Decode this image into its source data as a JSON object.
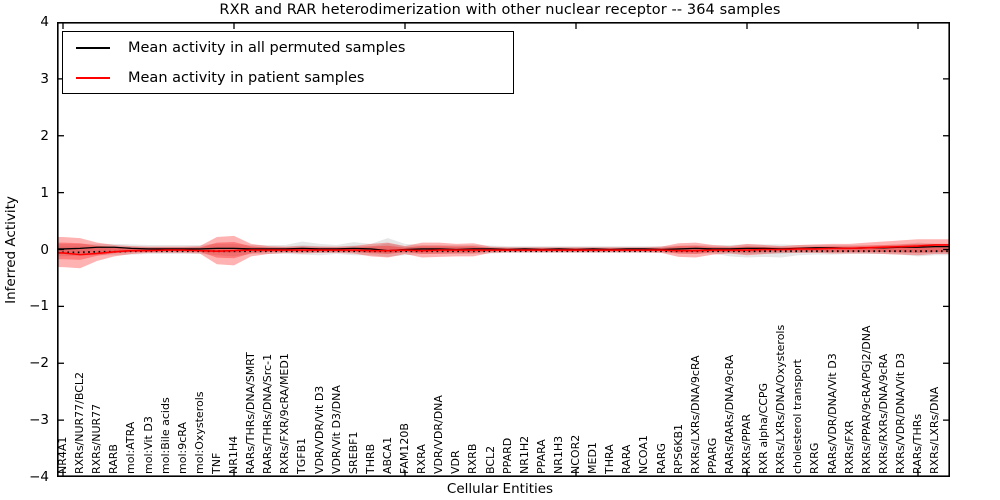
{
  "title": "RXR and RAR heterodimerization with other nuclear receptor -- 364 samples",
  "axes": {
    "xlabel": "Cellular Entities",
    "ylabel": "Inferred Activity",
    "ytick_labels": [
      "4",
      "3",
      "2",
      "1",
      "0",
      "−1",
      "−2",
      "−3",
      "−4"
    ],
    "ytick_values": [
      4,
      3,
      2,
      1,
      0,
      -1,
      -2,
      -3,
      -4
    ],
    "xtick_indices": [
      0,
      10,
      20,
      30,
      40,
      50
    ]
  },
  "legend": {
    "entries": [
      {
        "label": "Mean activity in all permuted samples",
        "color": "#000000"
      },
      {
        "label": "Mean activity in patient samples",
        "color": "#ff0000"
      }
    ],
    "position": "upper left"
  },
  "chart_data": {
    "type": "line",
    "title": "RXR and RAR heterodimerization with other nuclear receptor -- 364 samples",
    "xlabel": "Cellular Entities",
    "ylabel": "Inferred Activity",
    "ylim": [
      -4,
      4
    ],
    "grid": false,
    "legend_position": "upper left",
    "categories": [
      "NR4A1",
      "RXRs/NUR77/BCL2",
      "RXRs/NUR77",
      "RARB",
      "mol:ATRA",
      "mol:Vit D3",
      "mol:Bile acids",
      "mol:9cRA",
      "mol:Oxysterols",
      "TNF",
      "NR1H4",
      "RARs/THRs/DNA/SMRT",
      "RARs/THRs/DNA/Src-1",
      "RXRs/FXR/9cRA/MED1",
      "TGFB1",
      "VDR/VDR/Vit D3",
      "VDR/Vit D3/DNA",
      "SREBF1",
      "THRB",
      "ABCA1",
      "FAM120B",
      "RXRA",
      "VDR/VDR/DNA",
      "VDR",
      "RXRB",
      "BCL2",
      "PPARD",
      "NR1H2",
      "PPARA",
      "NR1H3",
      "NCOR2",
      "MED1",
      "THRA",
      "RARA",
      "NCOA1",
      "RARG",
      "RPS6KB1",
      "RXRs/LXRs/DNA/9cRA",
      "PPARG",
      "RARs/RARs/DNA/9cRA",
      "RXRs/PPAR",
      "RXR alpha/CCPG",
      "RXRs/LXRs/DNA/Oxysterols",
      "cholesterol transport",
      "RXRG",
      "RARs/VDR/DNA/Vit D3",
      "RXRs/FXR",
      "RXRs/PPAR/9cRA/PGJ2/DNA",
      "RXRs/RXRs/DNA/9cRA",
      "RXRs/VDR/DNA/Vit D3",
      "RARs/THRs",
      "RXRs/LXRs/DNA"
    ],
    "series": [
      {
        "name": "Mean activity in all permuted samples",
        "color": "#000000",
        "style": "solid",
        "width": 1.3,
        "values": [
          0.01,
          0.02,
          0.04,
          0.04,
          0.02,
          0.01,
          0.01,
          0.01,
          0.01,
          0.02,
          0.02,
          0.01,
          0.01,
          0.01,
          0.02,
          0.01,
          0.01,
          0.02,
          0.01,
          -0.02,
          0.0,
          0.01,
          0.01,
          0.0,
          0.01,
          0.01,
          0.0,
          0.01,
          0.0,
          0.01,
          0.0,
          0.01,
          0.0,
          0.01,
          0.01,
          0.0,
          0.01,
          0.02,
          0.01,
          0.01,
          0.02,
          0.02,
          0.01,
          0.02,
          0.03,
          0.03,
          0.02,
          0.03,
          0.03,
          0.04,
          0.04,
          0.05
        ]
      },
      {
        "name": "Mean activity in patient samples",
        "color": "#ff0000",
        "style": "solid",
        "width": 1.6,
        "values": [
          -0.06,
          -0.09,
          -0.07,
          -0.04,
          -0.02,
          -0.02,
          -0.01,
          -0.01,
          -0.02,
          -0.03,
          -0.02,
          -0.01,
          -0.01,
          -0.01,
          -0.01,
          -0.01,
          -0.01,
          -0.01,
          -0.02,
          -0.02,
          -0.01,
          -0.02,
          -0.01,
          -0.01,
          -0.01,
          -0.01,
          -0.01,
          -0.01,
          -0.01,
          -0.01,
          -0.01,
          -0.01,
          -0.01,
          -0.01,
          -0.01,
          -0.01,
          -0.02,
          -0.02,
          -0.01,
          -0.01,
          -0.01,
          0.0,
          0.0,
          0.01,
          0.01,
          0.02,
          0.02,
          0.03,
          0.04,
          0.05,
          0.06,
          0.08
        ]
      },
      {
        "name": "dotted reference line",
        "color": "#000000",
        "style": "dotted",
        "width": 1.8,
        "values": [
          -0.05,
          -0.05,
          -0.04,
          -0.04,
          -0.03,
          -0.03,
          -0.03,
          -0.03,
          -0.03,
          -0.03,
          -0.03,
          -0.03,
          -0.03,
          -0.03,
          -0.03,
          -0.03,
          -0.03,
          -0.03,
          -0.03,
          -0.03,
          -0.03,
          -0.03,
          -0.03,
          -0.03,
          -0.03,
          -0.03,
          -0.03,
          -0.03,
          -0.03,
          -0.03,
          -0.03,
          -0.03,
          -0.03,
          -0.03,
          -0.03,
          -0.03,
          -0.03,
          -0.03,
          -0.03,
          -0.03,
          -0.03,
          -0.03,
          -0.03,
          -0.03,
          -0.03,
          -0.03,
          -0.03,
          -0.03,
          -0.03,
          -0.03,
          -0.03,
          -0.03
        ]
      }
    ],
    "bands": [
      {
        "name": "permuted samples range",
        "color": "rgba(115,115,115,0.18)",
        "hi": [
          0.1,
          0.1,
          0.1,
          0.1,
          0.09,
          0.08,
          0.08,
          0.08,
          0.08,
          0.1,
          0.1,
          0.08,
          0.08,
          0.08,
          0.14,
          0.1,
          0.08,
          0.13,
          0.1,
          0.2,
          0.1,
          0.08,
          0.08,
          0.08,
          0.08,
          0.07,
          0.06,
          0.06,
          0.06,
          0.06,
          0.06,
          0.06,
          0.06,
          0.06,
          0.06,
          0.06,
          0.07,
          0.08,
          0.07,
          0.08,
          0.09,
          0.09,
          0.09,
          0.08,
          0.08,
          0.08,
          0.08,
          0.08,
          0.08,
          0.09,
          0.12,
          0.1
        ],
        "lo": [
          -0.12,
          -0.11,
          -0.1,
          -0.1,
          -0.09,
          -0.08,
          -0.08,
          -0.08,
          -0.08,
          -0.1,
          -0.12,
          -0.08,
          -0.08,
          -0.08,
          -0.09,
          -0.1,
          -0.08,
          -0.1,
          -0.1,
          -0.13,
          -0.1,
          -0.08,
          -0.08,
          -0.08,
          -0.08,
          -0.07,
          -0.06,
          -0.06,
          -0.06,
          -0.06,
          -0.06,
          -0.06,
          -0.06,
          -0.06,
          -0.06,
          -0.06,
          -0.07,
          -0.08,
          -0.07,
          -0.12,
          -0.14,
          -0.13,
          -0.14,
          -0.1,
          -0.09,
          -0.09,
          -0.08,
          -0.08,
          -0.08,
          -0.09,
          -0.12,
          -0.1
        ]
      },
      {
        "name": "patient samples range",
        "color": "rgba(255,0,0,0.30)",
        "hi": [
          0.22,
          0.2,
          0.12,
          0.08,
          0.06,
          0.05,
          0.05,
          0.05,
          0.06,
          0.22,
          0.24,
          0.1,
          0.06,
          0.05,
          0.06,
          0.05,
          0.05,
          0.06,
          0.1,
          0.12,
          0.06,
          0.12,
          0.12,
          0.1,
          0.11,
          0.05,
          0.04,
          0.04,
          0.04,
          0.04,
          0.04,
          0.04,
          0.04,
          0.04,
          0.04,
          0.05,
          0.11,
          0.12,
          0.08,
          0.06,
          0.1,
          0.08,
          0.06,
          0.08,
          0.09,
          0.1,
          0.1,
          0.12,
          0.14,
          0.16,
          0.18,
          0.18
        ],
        "lo": [
          -0.31,
          -0.33,
          -0.2,
          -0.12,
          -0.08,
          -0.06,
          -0.06,
          -0.06,
          -0.07,
          -0.26,
          -0.28,
          -0.12,
          -0.08,
          -0.06,
          -0.07,
          -0.06,
          -0.06,
          -0.07,
          -0.12,
          -0.14,
          -0.08,
          -0.14,
          -0.13,
          -0.12,
          -0.12,
          -0.06,
          -0.05,
          -0.05,
          -0.05,
          -0.05,
          -0.05,
          -0.05,
          -0.05,
          -0.05,
          -0.05,
          -0.06,
          -0.13,
          -0.14,
          -0.09,
          -0.07,
          -0.1,
          -0.08,
          -0.06,
          -0.06,
          -0.06,
          -0.07,
          -0.07,
          -0.07,
          -0.08,
          -0.09,
          -0.1,
          -0.08
        ]
      }
    ]
  }
}
